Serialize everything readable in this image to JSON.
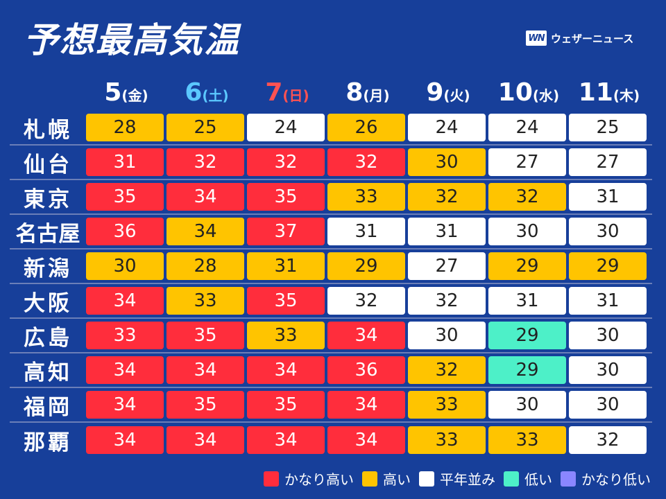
{
  "title": "予想最高気温",
  "brand": {
    "logo": "WN",
    "name": "ウェザーニュース"
  },
  "days": [
    {
      "num": "5",
      "wd": "(金)",
      "type": "weekday"
    },
    {
      "num": "6",
      "wd": "(土)",
      "type": "sat"
    },
    {
      "num": "7",
      "wd": "(日)",
      "type": "sun"
    },
    {
      "num": "8",
      "wd": "(月)",
      "type": "weekday"
    },
    {
      "num": "9",
      "wd": "(火)",
      "type": "weekday"
    },
    {
      "num": "10",
      "wd": "(水)",
      "type": "weekday"
    },
    {
      "num": "11",
      "wd": "(木)",
      "type": "weekday"
    }
  ],
  "cities": [
    {
      "name": "札幌",
      "temps": [
        [
          "28",
          "h"
        ],
        [
          "25",
          "h"
        ],
        [
          "24",
          "n"
        ],
        [
          "26",
          "h"
        ],
        [
          "24",
          "n"
        ],
        [
          "24",
          "n"
        ],
        [
          "25",
          "n"
        ]
      ]
    },
    {
      "name": "仙台",
      "temps": [
        [
          "31",
          "vh"
        ],
        [
          "32",
          "vh"
        ],
        [
          "32",
          "vh"
        ],
        [
          "32",
          "vh"
        ],
        [
          "30",
          "h"
        ],
        [
          "27",
          "n"
        ],
        [
          "27",
          "n"
        ]
      ]
    },
    {
      "name": "東京",
      "temps": [
        [
          "35",
          "vh"
        ],
        [
          "34",
          "vh"
        ],
        [
          "35",
          "vh"
        ],
        [
          "33",
          "h"
        ],
        [
          "32",
          "h"
        ],
        [
          "32",
          "h"
        ],
        [
          "31",
          "n"
        ]
      ]
    },
    {
      "name": "名古屋",
      "temps": [
        [
          "36",
          "vh"
        ],
        [
          "34",
          "h"
        ],
        [
          "37",
          "vh"
        ],
        [
          "31",
          "n"
        ],
        [
          "31",
          "n"
        ],
        [
          "30",
          "n"
        ],
        [
          "30",
          "n"
        ]
      ]
    },
    {
      "name": "新潟",
      "temps": [
        [
          "30",
          "h"
        ],
        [
          "28",
          "h"
        ],
        [
          "31",
          "h"
        ],
        [
          "29",
          "h"
        ],
        [
          "27",
          "n"
        ],
        [
          "29",
          "h"
        ],
        [
          "29",
          "h"
        ]
      ]
    },
    {
      "name": "大阪",
      "temps": [
        [
          "34",
          "vh"
        ],
        [
          "33",
          "h"
        ],
        [
          "35",
          "vh"
        ],
        [
          "32",
          "n"
        ],
        [
          "32",
          "n"
        ],
        [
          "31",
          "n"
        ],
        [
          "31",
          "n"
        ]
      ]
    },
    {
      "name": "広島",
      "temps": [
        [
          "33",
          "vh"
        ],
        [
          "35",
          "vh"
        ],
        [
          "33",
          "h"
        ],
        [
          "34",
          "vh"
        ],
        [
          "30",
          "n"
        ],
        [
          "29",
          "l"
        ],
        [
          "30",
          "n"
        ]
      ]
    },
    {
      "name": "高知",
      "temps": [
        [
          "34",
          "vh"
        ],
        [
          "34",
          "vh"
        ],
        [
          "34",
          "vh"
        ],
        [
          "36",
          "vh"
        ],
        [
          "32",
          "h"
        ],
        [
          "29",
          "l"
        ],
        [
          "30",
          "n"
        ]
      ]
    },
    {
      "name": "福岡",
      "temps": [
        [
          "34",
          "vh"
        ],
        [
          "35",
          "vh"
        ],
        [
          "35",
          "vh"
        ],
        [
          "34",
          "vh"
        ],
        [
          "33",
          "h"
        ],
        [
          "30",
          "n"
        ],
        [
          "30",
          "n"
        ]
      ]
    },
    {
      "name": "那覇",
      "temps": [
        [
          "34",
          "vh"
        ],
        [
          "34",
          "vh"
        ],
        [
          "34",
          "vh"
        ],
        [
          "34",
          "vh"
        ],
        [
          "33",
          "h"
        ],
        [
          "33",
          "h"
        ],
        [
          "32",
          "n"
        ]
      ]
    }
  ],
  "legend": [
    {
      "label": "かなり高い",
      "color": "#ff2d3c"
    },
    {
      "label": "高い",
      "color": "#ffc400"
    },
    {
      "label": "平年並み",
      "color": "#ffffff"
    },
    {
      "label": "低い",
      "color": "#4df0c8"
    },
    {
      "label": "かなり低い",
      "color": "#8a86ff"
    }
  ]
}
